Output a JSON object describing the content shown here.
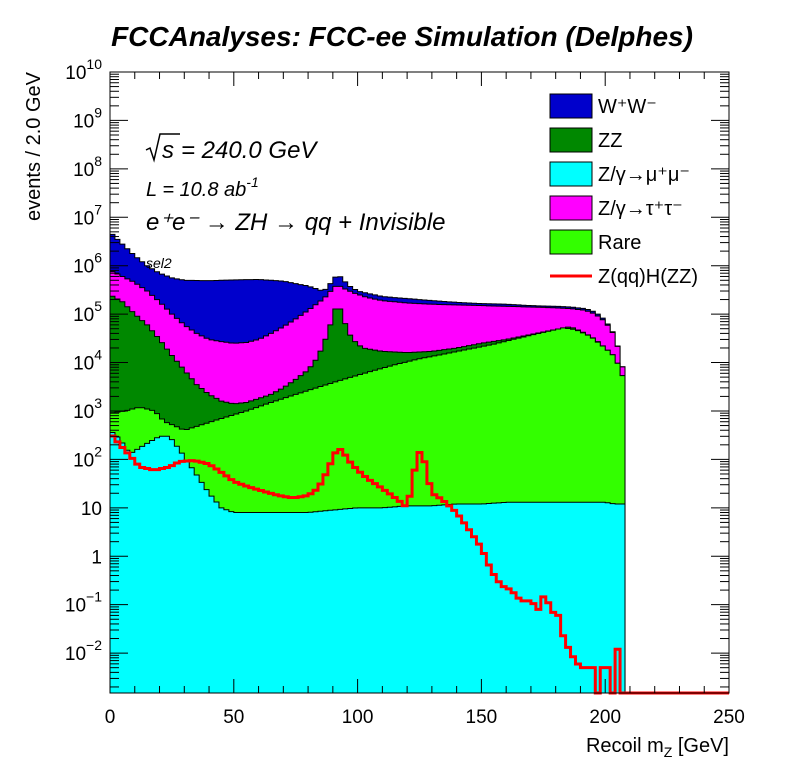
{
  "chart_data": {
    "type": "area",
    "stacked": true,
    "title": "FCCAnalyses: FCC-ee Simulation (Delphes)",
    "xlabel": "Recoil m_Z [GeV]",
    "ylabel": "events / 2.0 GeV",
    "xlim": [
      0,
      250
    ],
    "ylim": [
      0.0015,
      10000000000
    ],
    "yscale": "log",
    "bin_width_gev": 2,
    "grid": false,
    "legend_position": "top-right",
    "x_ticks": [
      "0",
      "50",
      "100",
      "150",
      "200",
      "250"
    ],
    "y_ticks": [
      {
        "base": "10",
        "exp": "10"
      },
      {
        "base": "10",
        "exp": "9"
      },
      {
        "base": "10",
        "exp": "8"
      },
      {
        "base": "10",
        "exp": "7"
      },
      {
        "base": "10",
        "exp": "6"
      },
      {
        "base": "10",
        "exp": "5"
      },
      {
        "base": "10",
        "exp": "4"
      },
      {
        "base": "10",
        "exp": "3"
      },
      {
        "base": "10",
        "exp": "2"
      },
      {
        "base": "10",
        "exp": ""
      },
      {
        "base": "1",
        "exp": ""
      },
      {
        "base": "10",
        "exp": "−1"
      },
      {
        "base": "10",
        "exp": "−2"
      }
    ],
    "annotations": {
      "sqrt_s": "= 240.0 GeV",
      "lumi_prefix": "L = 10.8 ab",
      "lumi_exp": "-1",
      "process": "e⁺e⁻ → ZH → qq + Invisible",
      "selection": "sel2"
    },
    "series": [
      {
        "name": "Z/γ→μ⁺μ⁻",
        "color": "#00ffff",
        "style": "fill",
        "points": [
          [
            0,
            400
          ],
          [
            4,
            260
          ],
          [
            8,
            130
          ],
          [
            14,
            200
          ],
          [
            20,
            300
          ],
          [
            24,
            300
          ],
          [
            28,
            160
          ],
          [
            32,
            80
          ],
          [
            36,
            40
          ],
          [
            40,
            20
          ],
          [
            45,
            10
          ],
          [
            50,
            8
          ],
          [
            60,
            8
          ],
          [
            70,
            8
          ],
          [
            80,
            8
          ],
          [
            90,
            9
          ],
          [
            100,
            10
          ],
          [
            110,
            10
          ],
          [
            120,
            11
          ],
          [
            130,
            11
          ],
          [
            140,
            12
          ],
          [
            150,
            12
          ],
          [
            160,
            13
          ],
          [
            170,
            13
          ],
          [
            180,
            13
          ],
          [
            190,
            13
          ],
          [
            200,
            13
          ],
          [
            204,
            12
          ],
          [
            208,
            12
          ],
          [
            210,
            0
          ]
        ]
      },
      {
        "name": "Rare",
        "color": "#33ff00",
        "style": "fill",
        "points": [
          [
            0,
            900
          ],
          [
            6,
            1000
          ],
          [
            12,
            1200
          ],
          [
            18,
            1000
          ],
          [
            22,
            600
          ],
          [
            26,
            500
          ],
          [
            30,
            400
          ],
          [
            36,
            500
          ],
          [
            45,
            700
          ],
          [
            55,
            1000
          ],
          [
            65,
            1500
          ],
          [
            75,
            2200
          ],
          [
            85,
            3200
          ],
          [
            95,
            4600
          ],
          [
            105,
            6500
          ],
          [
            115,
            9000
          ],
          [
            125,
            12000
          ],
          [
            135,
            15000
          ],
          [
            145,
            19000
          ],
          [
            155,
            24000
          ],
          [
            165,
            32000
          ],
          [
            175,
            42000
          ],
          [
            183,
            52000
          ],
          [
            188,
            48000
          ],
          [
            194,
            35000
          ],
          [
            200,
            20000
          ],
          [
            204,
            13000
          ],
          [
            208,
            4000
          ],
          [
            210,
            0
          ]
        ]
      },
      {
        "name": "ZZ",
        "color": "#008800",
        "style": "fill",
        "points": [
          [
            0,
            250000
          ],
          [
            5,
            180000
          ],
          [
            10,
            100000
          ],
          [
            15,
            60000
          ],
          [
            20,
            30000
          ],
          [
            25,
            14000
          ],
          [
            30,
            7000
          ],
          [
            35,
            3500
          ],
          [
            40,
            2200
          ],
          [
            45,
            1600
          ],
          [
            50,
            1400
          ],
          [
            55,
            1500
          ],
          [
            60,
            1800
          ],
          [
            65,
            2200
          ],
          [
            70,
            3000
          ],
          [
            75,
            4500
          ],
          [
            80,
            7000
          ],
          [
            84,
            13000
          ],
          [
            88,
            40000
          ],
          [
            90,
            90000
          ],
          [
            92,
            180000
          ],
          [
            94,
            90000
          ],
          [
            96,
            45000
          ],
          [
            98,
            30000
          ],
          [
            102,
            20000
          ],
          [
            110,
            17000
          ],
          [
            120,
            16000
          ],
          [
            130,
            17000
          ],
          [
            140,
            20000
          ],
          [
            150,
            25000
          ],
          [
            160,
            30000
          ],
          [
            170,
            38000
          ],
          [
            180,
            48000
          ],
          [
            186,
            55000
          ],
          [
            192,
            40000
          ],
          [
            196,
            30000
          ],
          [
            200,
            20000
          ],
          [
            204,
            13000
          ],
          [
            208,
            4000
          ],
          [
            210,
            0
          ]
        ]
      },
      {
        "name": "Z/γ→τ⁺τ⁻",
        "color": "#ff00ff",
        "style": "fill",
        "points": [
          [
            0,
            800000
          ],
          [
            5,
            600000
          ],
          [
            10,
            450000
          ],
          [
            15,
            300000
          ],
          [
            20,
            180000
          ],
          [
            25,
            100000
          ],
          [
            30,
            60000
          ],
          [
            35,
            40000
          ],
          [
            40,
            30000
          ],
          [
            45,
            27000
          ],
          [
            50,
            25000
          ],
          [
            55,
            26000
          ],
          [
            60,
            30000
          ],
          [
            65,
            40000
          ],
          [
            70,
            55000
          ],
          [
            75,
            80000
          ],
          [
            80,
            120000
          ],
          [
            84,
            170000
          ],
          [
            88,
            250000
          ],
          [
            90,
            350000
          ],
          [
            92,
            400000
          ],
          [
            94,
            350000
          ],
          [
            98,
            280000
          ],
          [
            104,
            220000
          ],
          [
            110,
            190000
          ],
          [
            120,
            170000
          ],
          [
            130,
            160000
          ],
          [
            140,
            155000
          ],
          [
            150,
            150000
          ],
          [
            160,
            145000
          ],
          [
            170,
            140000
          ],
          [
            180,
            135000
          ],
          [
            186,
            130000
          ],
          [
            192,
            120000
          ],
          [
            196,
            100000
          ],
          [
            200,
            70000
          ],
          [
            204,
            35000
          ],
          [
            208,
            5000
          ],
          [
            210,
            0
          ]
        ]
      },
      {
        "name": "W⁺W⁻",
        "color": "#0000cc",
        "style": "fill",
        "points": [
          [
            0,
            5000000
          ],
          [
            3,
            3500000
          ],
          [
            6,
            2500000
          ],
          [
            10,
            1600000
          ],
          [
            15,
            1000000
          ],
          [
            20,
            700000
          ],
          [
            25,
            560000
          ],
          [
            30,
            500000
          ],
          [
            40,
            490000
          ],
          [
            50,
            510000
          ],
          [
            60,
            520000
          ],
          [
            70,
            480000
          ],
          [
            80,
            380000
          ],
          [
            86,
            300000
          ],
          [
            88,
            350000
          ],
          [
            90,
            520000
          ],
          [
            92,
            650000
          ],
          [
            94,
            540000
          ],
          [
            96,
            400000
          ],
          [
            100,
            300000
          ],
          [
            110,
            230000
          ],
          [
            120,
            210000
          ],
          [
            130,
            190000
          ],
          [
            140,
            175000
          ],
          [
            150,
            165000
          ],
          [
            160,
            160000
          ],
          [
            170,
            150000
          ],
          [
            180,
            145000
          ],
          [
            186,
            140000
          ],
          [
            192,
            130000
          ],
          [
            196,
            110000
          ],
          [
            200,
            75000
          ],
          [
            204,
            36000
          ],
          [
            208,
            5000
          ],
          [
            210,
            0
          ]
        ]
      },
      {
        "name": "Z(qq)H(ZZ)",
        "color": "#ff0000",
        "style": "line",
        "points": [
          [
            0,
            350
          ],
          [
            4,
            200
          ],
          [
            8,
            120
          ],
          [
            12,
            70
          ],
          [
            18,
            60
          ],
          [
            24,
            70
          ],
          [
            28,
            90
          ],
          [
            34,
            95
          ],
          [
            40,
            80
          ],
          [
            46,
            50
          ],
          [
            50,
            35
          ],
          [
            56,
            27
          ],
          [
            62,
            22
          ],
          [
            68,
            18
          ],
          [
            74,
            16
          ],
          [
            80,
            18
          ],
          [
            84,
            25
          ],
          [
            88,
            60
          ],
          [
            90,
            110
          ],
          [
            92,
            170
          ],
          [
            94,
            150
          ],
          [
            96,
            100
          ],
          [
            100,
            60
          ],
          [
            104,
            40
          ],
          [
            110,
            25
          ],
          [
            116,
            15
          ],
          [
            120,
            10
          ],
          [
            122,
            30
          ],
          [
            124,
            120
          ],
          [
            126,
            160
          ],
          [
            128,
            50
          ],
          [
            130,
            20
          ],
          [
            134,
            15
          ],
          [
            140,
            8
          ],
          [
            146,
            3
          ],
          [
            150,
            1.5
          ],
          [
            154,
            0.5
          ],
          [
            158,
            0.25
          ],
          [
            162,
            0.2
          ],
          [
            166,
            0.12
          ],
          [
            170,
            0.12
          ],
          [
            174,
            0.07
          ],
          [
            176,
            0.3
          ],
          [
            178,
            0.04
          ],
          [
            180,
            0.12
          ],
          [
            182,
            0.03
          ],
          [
            186,
            0.01
          ],
          [
            190,
            0.005
          ],
          [
            196,
            0.005
          ],
          [
            198,
            0
          ],
          [
            200,
            0.005
          ],
          [
            204,
            0
          ],
          [
            206,
            0.012
          ],
          [
            208,
            0
          ],
          [
            210,
            0
          ],
          [
            250,
            0
          ]
        ]
      }
    ]
  }
}
